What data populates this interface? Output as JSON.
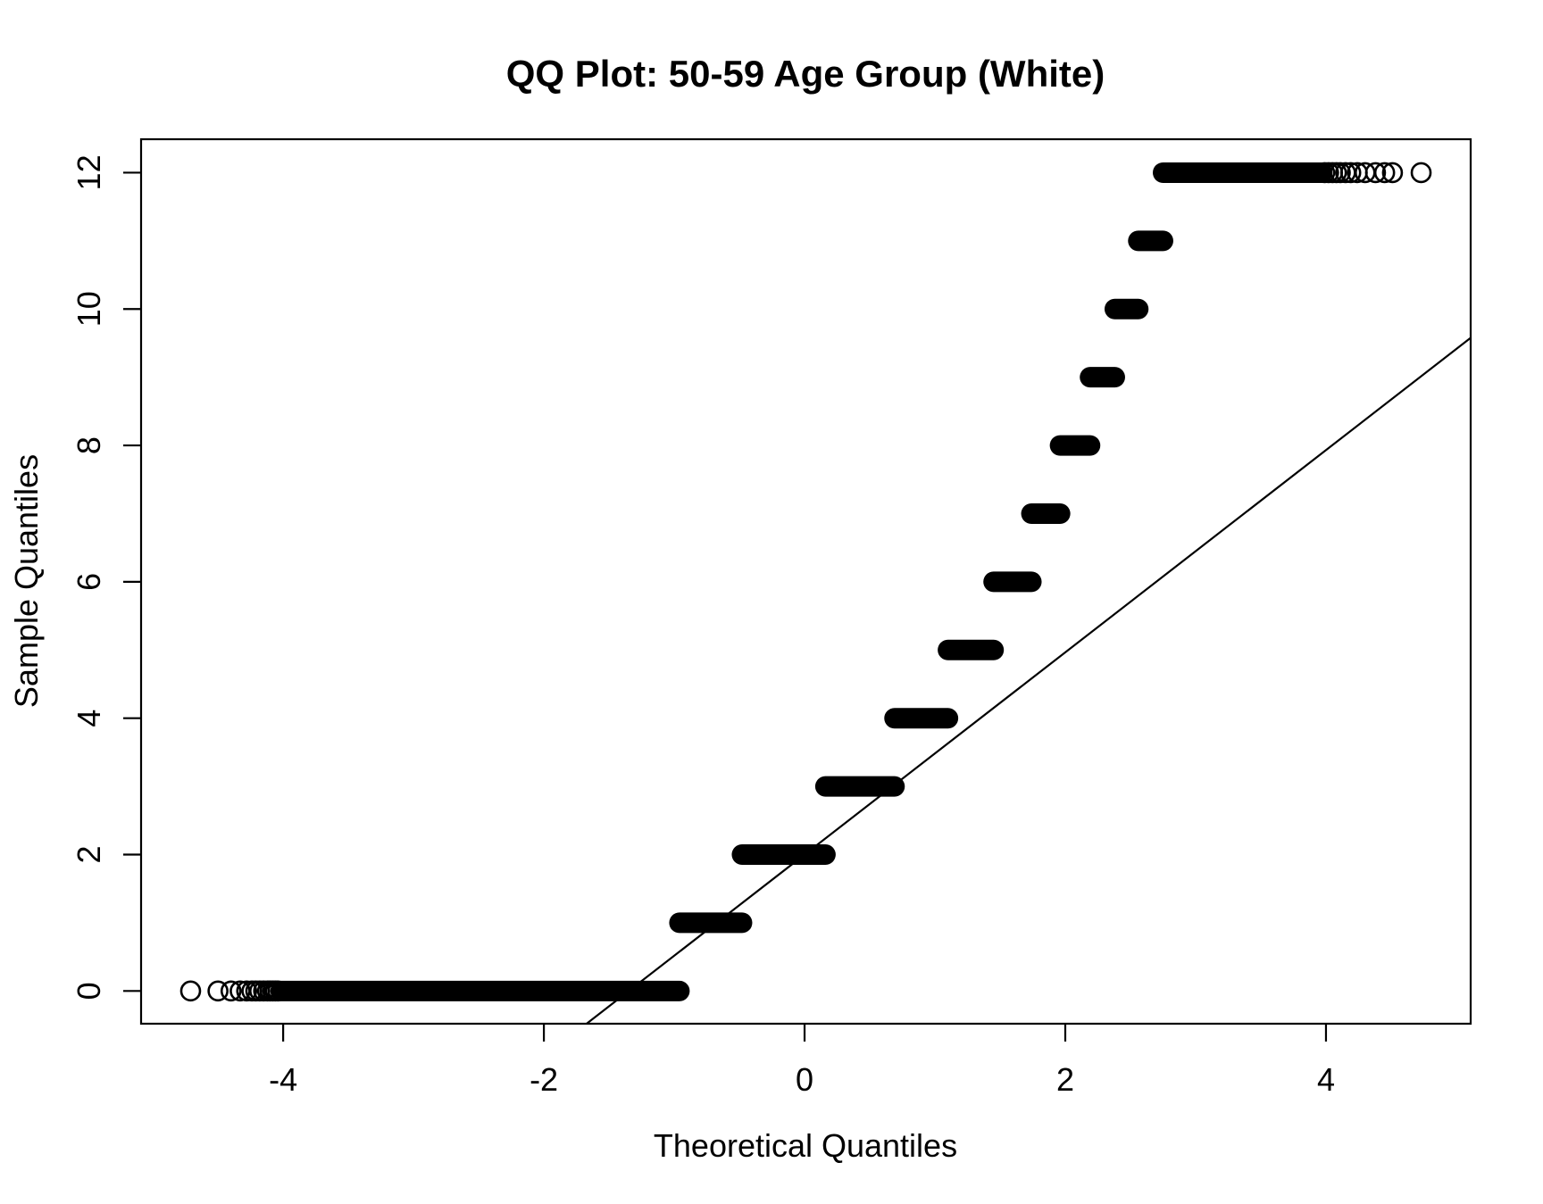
{
  "title": "QQ Plot: 50-59 Age Group (White)",
  "chart_data": {
    "type": "scatter",
    "subtype": "qq-plot",
    "title": "QQ Plot: 50-59 Age Group (White)",
    "xlabel": "Theoretical Quantiles",
    "ylabel": "Sample Quantiles",
    "xlim": [
      -5.09,
      5.11
    ],
    "ylim": [
      -0.48,
      12.49
    ],
    "x_ticks": [
      -4,
      -2,
      0,
      2,
      4
    ],
    "y_ticks": [
      0,
      2,
      4,
      6,
      8,
      10,
      12
    ],
    "grid": false,
    "legend": "none",
    "marker": "open-circle",
    "colors": {
      "foreground": "#000000",
      "background": "#ffffff"
    },
    "bands": [
      {
        "y": 0,
        "x_start": -4.02,
        "x_end": -0.96
      },
      {
        "y": 1,
        "x_start": -0.96,
        "x_end": -0.48
      },
      {
        "y": 2,
        "x_start": -0.48,
        "x_end": 0.16
      },
      {
        "y": 3,
        "x_start": 0.16,
        "x_end": 0.69
      },
      {
        "y": 4,
        "x_start": 0.69,
        "x_end": 1.1
      },
      {
        "y": 5,
        "x_start": 1.1,
        "x_end": 1.45
      },
      {
        "y": 6,
        "x_start": 1.45,
        "x_end": 1.74
      },
      {
        "y": 7,
        "x_start": 1.74,
        "x_end": 1.96
      },
      {
        "y": 8,
        "x_start": 1.96,
        "x_end": 2.19
      },
      {
        "y": 9,
        "x_start": 2.19,
        "x_end": 2.38
      },
      {
        "y": 10,
        "x_start": 2.38,
        "x_end": 2.56
      },
      {
        "y": 11,
        "x_start": 2.56,
        "x_end": 2.75
      },
      {
        "y": 12,
        "x_start": 2.75,
        "x_end": 3.97
      }
    ],
    "sparse_points": [
      {
        "y": 0,
        "x": [
          -4.71,
          -4.5,
          -4.4,
          -4.33,
          -4.28,
          -4.24,
          -4.21,
          -4.18,
          -4.15,
          -4.12,
          -4.1,
          -4.08,
          -4.06,
          -4.04
        ]
      },
      {
        "y": 12,
        "x": [
          3.99,
          4.02,
          4.05,
          4.08,
          4.11,
          4.15,
          4.19,
          4.24,
          4.3,
          4.38,
          4.45,
          4.51,
          4.73
        ]
      }
    ],
    "qq_line": {
      "slope": 1.4829,
      "intercept": 2.0,
      "x_from": -1.672,
      "x_to": 5.11
    }
  }
}
